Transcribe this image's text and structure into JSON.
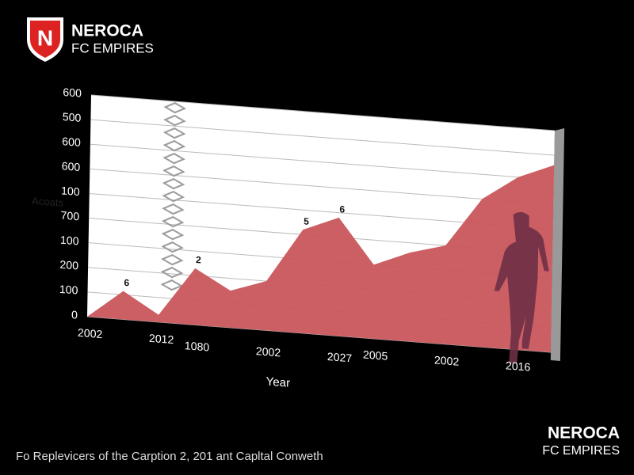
{
  "header": {
    "name": "NEROCA",
    "subtitle": "FC EMPIRES"
  },
  "footer_logo": {
    "name": "NEROCA",
    "subtitle": "FC EMPIRES"
  },
  "caption": "Fo Replevicers of the Carption 2, 201 ant Capltal Conweth",
  "chart_data": {
    "type": "area",
    "y_label": "Acoats",
    "x_label": "Year",
    "categories": [
      "2002",
      null,
      "2012",
      "1080",
      null,
      "2002",
      null,
      "2027",
      "2005",
      null,
      "2002",
      null,
      "2016",
      null
    ],
    "values": [
      0,
      115,
      30,
      230,
      150,
      200,
      420,
      480,
      300,
      360,
      400,
      600,
      700,
      760
    ],
    "annotations": [
      null,
      "6",
      null,
      "2",
      null,
      null,
      "5",
      "6",
      null,
      null,
      null,
      null,
      null,
      null
    ],
    "color": "#c9565b",
    "ylim": [
      0,
      900
    ],
    "yticks": [
      0,
      100,
      200,
      {
        "value": 300,
        "label": "100"
      },
      {
        "value": 400,
        "label": "700"
      },
      {
        "value": 500,
        "label": "100"
      },
      600,
      {
        "value": 700,
        "label": "600"
      },
      {
        "value": 800,
        "label": "500"
      },
      {
        "value": 900,
        "label": "600"
      }
    ],
    "grid": true
  }
}
